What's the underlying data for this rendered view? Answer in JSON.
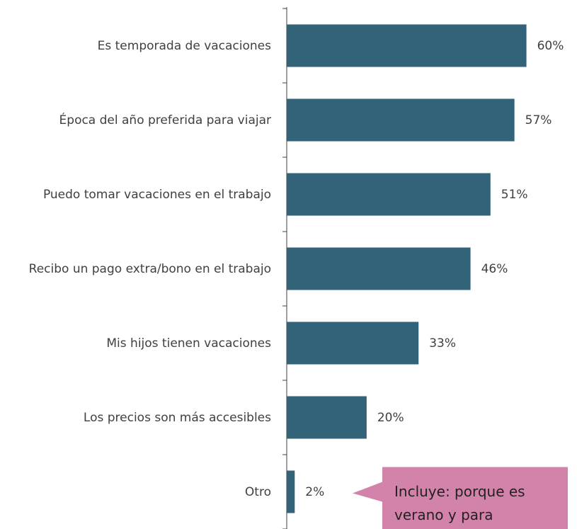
{
  "chart_data": {
    "type": "bar",
    "orientation": "horizontal",
    "categories": [
      "Es temporada de vacaciones",
      "Época del año preferida para viajar",
      "Puedo tomar vacaciones en el trabajo",
      "Recibo un pago extra/bono en el trabajo",
      "Mis hijos tienen vacaciones",
      "Los precios son más accesibles",
      "Otro"
    ],
    "values": [
      60,
      57,
      51,
      46,
      33,
      20,
      2
    ],
    "value_labels": [
      "60%",
      "57%",
      "51%",
      "46%",
      "33%",
      "20%",
      "2%"
    ],
    "color": "#336379",
    "xlim": [
      0,
      70
    ],
    "annotation": {
      "text": "Incluye: porque es verano y para",
      "color": "#d383aa",
      "category_index": 6
    }
  }
}
